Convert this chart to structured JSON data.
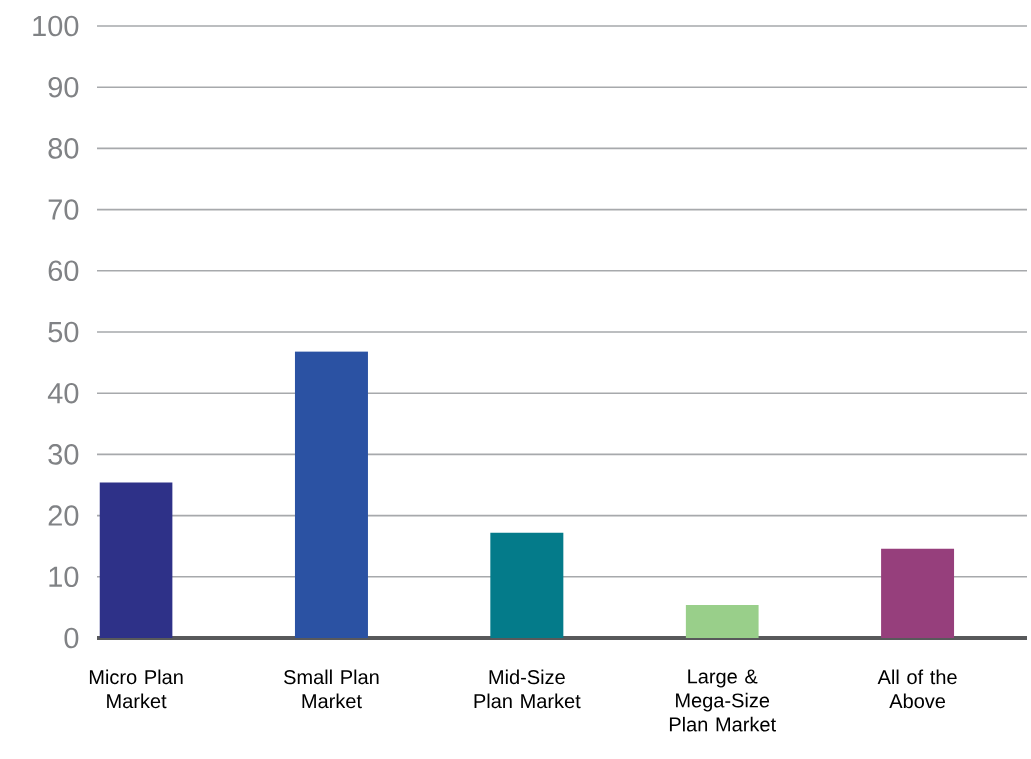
{
  "chart_data": {
    "type": "bar",
    "categories": [
      "Micro Plan Market",
      "Small Plan Market",
      "Mid-Size Plan Market",
      "Large & Mega-Size Plan Market",
      "All of the Above"
    ],
    "values": [
      25.4,
      46.8,
      17.2,
      5.4,
      14.6
    ],
    "colors": [
      "#2e3188",
      "#2b52a3",
      "#047b8a",
      "#99cf8a",
      "#963f7c"
    ],
    "ylim": [
      0,
      100
    ],
    "yticks": [
      0,
      10,
      20,
      30,
      40,
      50,
      60,
      70,
      80,
      90,
      100
    ],
    "grid": "y"
  }
}
